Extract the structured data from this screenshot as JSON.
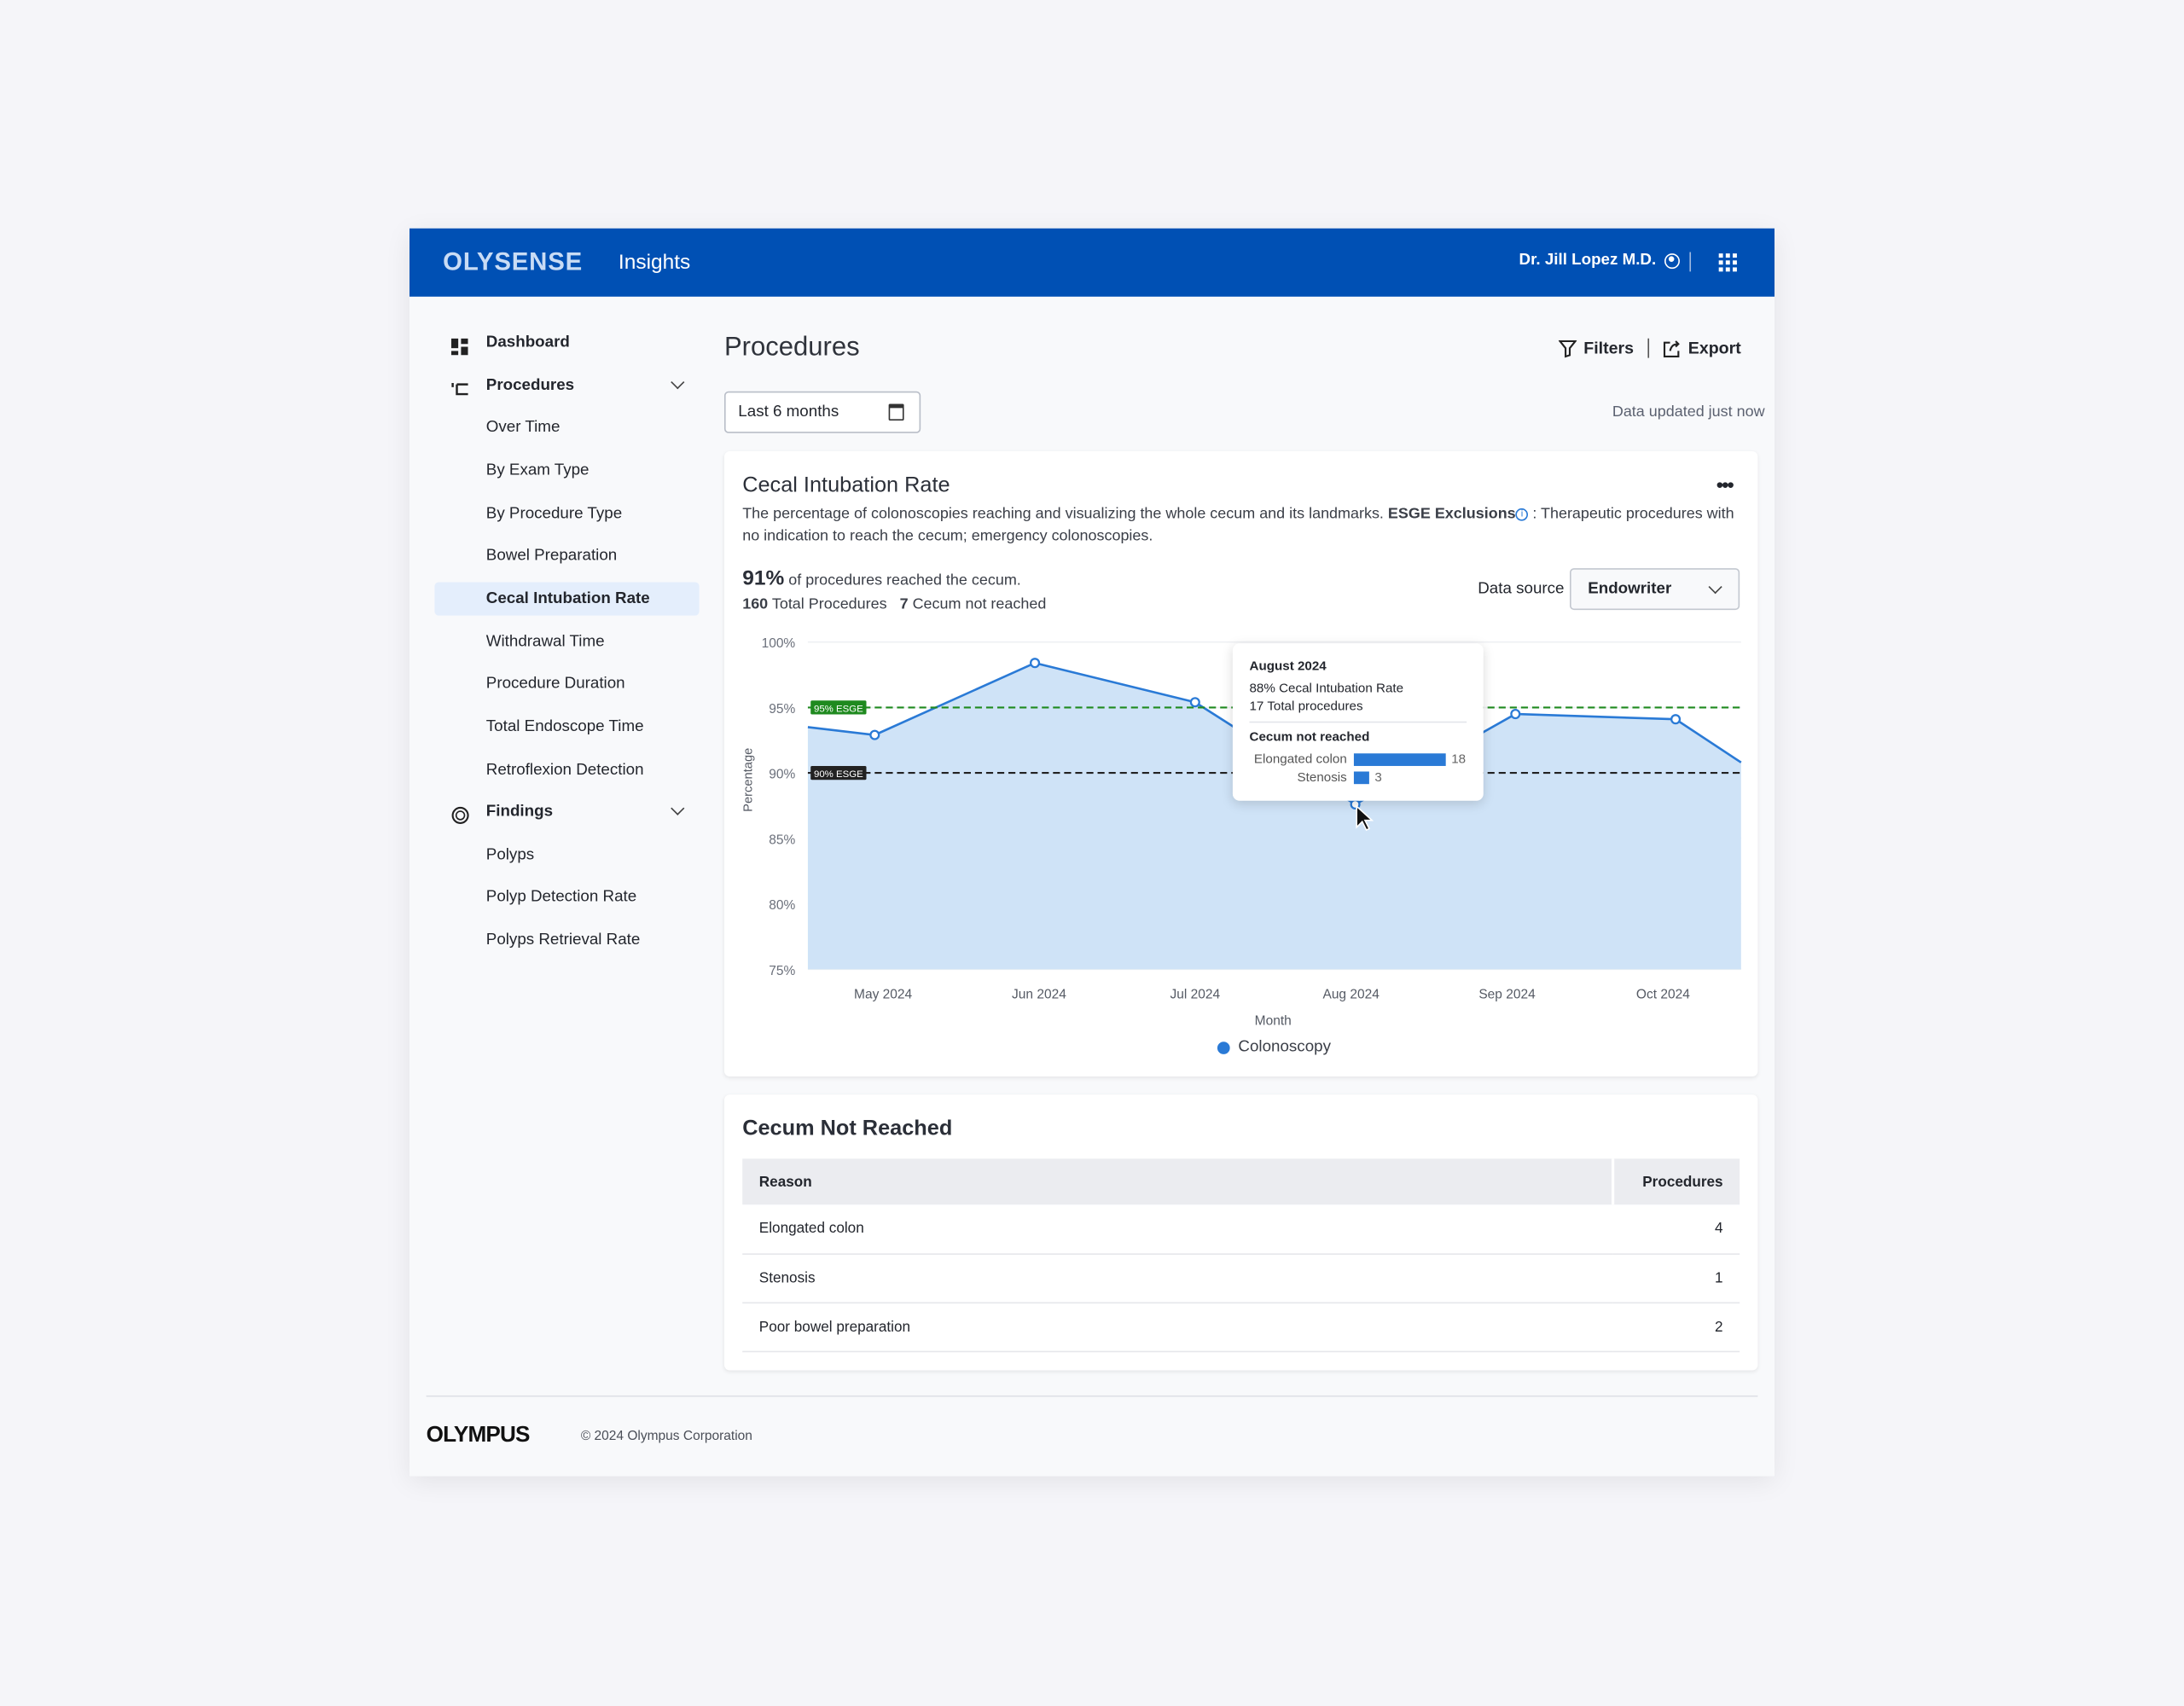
{
  "header": {
    "brand": "OLYSENSE",
    "app": "Insights",
    "user": "Dr. Jill Lopez M.D.",
    "user_icon": "user-circle-icon",
    "apps_icon": "grid-icon"
  },
  "sidebar": {
    "items": [
      {
        "label": "Dashboard",
        "type": "header",
        "icon": "dashboard-icon"
      },
      {
        "label": "Procedures",
        "type": "header",
        "icon": "endoscope-icon",
        "expanded": true
      },
      {
        "label": "Over Time"
      },
      {
        "label": "By Exam Type"
      },
      {
        "label": "By Procedure Type"
      },
      {
        "label": "Bowel Preparation"
      },
      {
        "label": "Cecal Intubation Rate",
        "active": true
      },
      {
        "label": "Withdrawal Time"
      },
      {
        "label": "Procedure Duration"
      },
      {
        "label": "Total Endoscope Time"
      },
      {
        "label": "Retroflexion Detection"
      },
      {
        "label": "Findings",
        "type": "header",
        "icon": "findings-icon",
        "expanded": true
      },
      {
        "label": "Polyps"
      },
      {
        "label": "Polyp Detection Rate"
      },
      {
        "label": "Polyps Retrieval Rate"
      }
    ]
  },
  "page": {
    "title": "Procedures",
    "filters": "Filters",
    "export": "Export",
    "date_range": "Last 6 months",
    "updated": "Data updated just now"
  },
  "cecal_card": {
    "title": "Cecal Intubation Rate",
    "desc_1": "The percentage of colonoscopies reaching and visualizing the whole cecum and its landmarks.",
    "desc_bold": "ESGE Exclusions",
    "desc_2": ": Therapeutic procedures with no indication to reach the cecum; emergency colonoscopies.",
    "kpi_value": "91%",
    "kpi_text": "of procedures reached the cecum.",
    "total_value": "160",
    "total_label": "Total Procedures",
    "not_reached_value": "7",
    "not_reached_label": "Cecum not reached",
    "data_source_label": "Data source",
    "data_source": "Endowriter",
    "tooltip": {
      "title": "August 2024",
      "rate": "88% Cecal Intubation Rate",
      "total": "17 Total procedures",
      "section": "Cecum not reached",
      "bars": [
        {
          "label": "Elongated colon",
          "value": 18
        },
        {
          "label": "Stenosis",
          "value": 3
        }
      ]
    }
  },
  "chart_data": {
    "type": "area",
    "categories": [
      "May 2024",
      "Jun 2024",
      "Jul 2024",
      "Aug 2024",
      "Sep 2024",
      "Oct 2024"
    ],
    "series": [
      {
        "name": "Colonoscopy",
        "values": [
          92.9,
          98.4,
          95.4,
          87.6,
          94.5,
          94.1
        ],
        "color": "#2a7ad6"
      }
    ],
    "xlabel": "Month",
    "ylabel": "Percentage",
    "ylim": [
      75,
      100
    ],
    "yticks": [
      "75%",
      "80%",
      "85%",
      "90%",
      "95%",
      "100%"
    ],
    "reference_lines": [
      {
        "label": "95% ESGE",
        "value": 95,
        "color": "#1f8a1f"
      },
      {
        "label": "90% ESGE",
        "value": 90,
        "color": "#222222"
      }
    ],
    "legend": "bottom",
    "grid": true
  },
  "not_reached_card": {
    "title": "Cecum Not Reached",
    "columns": [
      "Reason",
      "Procedures"
    ],
    "rows": [
      [
        "Elongated colon",
        "4"
      ],
      [
        "Stenosis",
        "1"
      ],
      [
        "Poor bowel preparation",
        "2"
      ]
    ]
  },
  "footer": {
    "logo": "OLYMPUS",
    "copyright": "© 2024 Olympus Corporation"
  }
}
